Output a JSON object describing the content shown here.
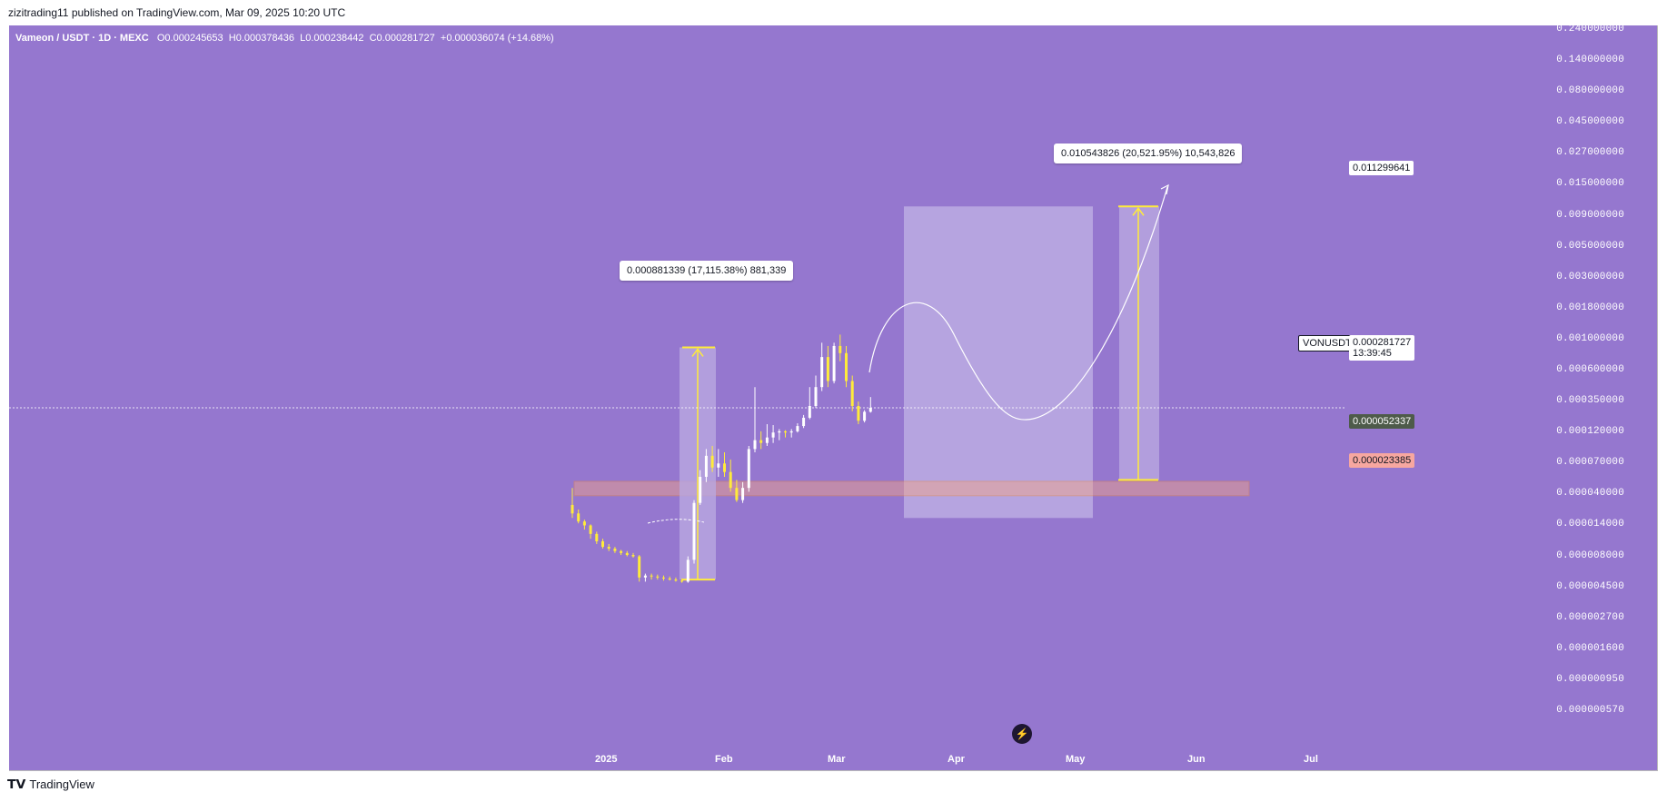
{
  "publish_line": "zizitrading11 published on TradingView.com, Mar 09, 2025 10:20 UTC",
  "symbol_line": {
    "symbol": "Vameon / USDT · 1D · MEXC",
    "open": "O0.000245653",
    "high": "H0.000378436",
    "low": "L0.000238442",
    "close": "C0.000281727",
    "change": "+0.000036074 (+14.68%)"
  },
  "price_axis": {
    "scale": "log",
    "ticks": [
      "0.240000000",
      "0.140000000",
      "0.080000000",
      "0.045000000",
      "0.027000000",
      "0.015000000",
      "0.009000000",
      "0.005000000",
      "0.003000000",
      "0.001800000",
      "0.001000000",
      "0.000600000",
      "0.000350000",
      "0.000120000",
      "0.000070000",
      "0.000040000",
      "0.000014000",
      "0.000008000",
      "0.000004500",
      "0.000002700",
      "0.000001600",
      "0.000000950",
      "0.000000570"
    ]
  },
  "time_axis": {
    "ticks": [
      "2025",
      "Feb",
      "Mar",
      "Apr",
      "May",
      "Jun",
      "Jul"
    ]
  },
  "callouts": {
    "measure_1": "0.000881339 (17,115.38%) 881,339",
    "measure_2": "0.010543826 (20,521.95%) 10,543,826"
  },
  "price_tags": {
    "target": "0.011299641",
    "symbol": "VONUSDT",
    "current": "0.000281727",
    "countdown": "13:39:45",
    "zone_top": "0.000052337",
    "zone_bottom": "0.000023385"
  },
  "colors": {
    "background": "#9577cf",
    "candle_up": "#ffffff",
    "candle_down": "#ffeb3b",
    "zone_fill": "#f4a582",
    "projection_fill": "#c2b3e6",
    "target_tag": "#ffffff",
    "zone_top_tag": "#4e5b4a",
    "zone_bottom_tag": "#f7a7a0"
  },
  "icons": {
    "replay": "lightning-icon",
    "brand": "tradingview-logo"
  },
  "footer": {
    "brand": "TradingView"
  },
  "chart_data": {
    "type": "candlestick",
    "title": "Vameon / USDT · 1D · MEXC",
    "y_scale": "log",
    "ylim": [
      5.7e-07,
      0.24
    ],
    "x_ticks": [
      "2025",
      "Feb",
      "Mar",
      "Apr",
      "May",
      "Jun",
      "Jul"
    ],
    "series": [
      {
        "values": [
          [
            2.8e-05,
            4.5e-05,
            1.8e-05,
            2.1e-05
          ],
          [
            2.1e-05,
            2.4e-05,
            1.5e-05,
            1.6e-05
          ],
          [
            1.6e-05,
            1.7e-05,
            1.3e-05,
            1.4e-05
          ],
          [
            1.4e-05,
            1.45e-05,
            1.1e-05,
            1.2e-05
          ],
          [
            1.2e-05,
            1.25e-05,
            1e-05,
            1.05e-05
          ],
          [
            1.05e-05,
            1.1e-05,
            9.2e-06,
            9.5e-06
          ],
          [
            9.5e-06,
            1e-05,
            8.8e-06,
            9.2e-06
          ],
          [
            9.2e-06,
            9.5e-06,
            8.5e-06,
            8.8e-06
          ],
          [
            8.8e-06,
            9e-06,
            8.2e-06,
            8.5e-06
          ],
          [
            8.5e-06,
            8.8e-06,
            8e-06,
            8.2e-06
          ],
          [
            8.2e-06,
            8.5e-06,
            7.8e-06,
            8e-06
          ],
          [
            8e-06,
            8.2e-06,
            5e-06,
            5.4e-06
          ],
          [
            5.4e-06,
            5.8e-06,
            5e-06,
            5.6e-06
          ],
          [
            5.6e-06,
            5.8e-06,
            5.2e-06,
            5.5e-06
          ],
          [
            5.5e-06,
            5.7e-06,
            5.2e-06,
            5.4e-06
          ],
          [
            5.4e-06,
            5.6e-06,
            5.1e-06,
            5.3e-06
          ],
          [
            5.3e-06,
            5.5e-06,
            5.1e-06,
            5.2e-06
          ],
          [
            5.2e-06,
            5.4e-06,
            5e-06,
            5.1e-06
          ],
          [
            5.1e-06,
            5.3e-06,
            4.9e-06,
            5e-06
          ],
          [
            5e-06,
            8e-06,
            4.9e-06,
            7.5e-06
          ],
          [
            7.5e-06,
            3.3e-05,
            7e-06,
            3e-05
          ],
          [
            3e-05,
            6.2e-05,
            2.8e-05,
            5.5e-05
          ],
          [
            5.5e-05,
            9e-05,
            5e-05,
            8e-05
          ],
          [
            8e-05,
            9.5e-05,
            6e-05,
            6.5e-05
          ],
          [
            6.5e-05,
            9e-05,
            5.5e-05,
            7e-05
          ],
          [
            7e-05,
            8.5e-05,
            5.5e-05,
            6e-05
          ],
          [
            6e-05,
            7.5e-05,
            4.2e-05,
            4.5e-05
          ],
          [
            4.5e-05,
            5.2e-05,
            3.1e-05,
            3.3e-05
          ],
          [
            3.3e-05,
            5e-05,
            3e-05,
            4.5e-05
          ],
          [
            4.5e-05,
            9.5e-05,
            4.2e-05,
            9e-05
          ],
          [
            9e-05,
            0.00045,
            8.5e-05,
            0.000105
          ],
          [
            0.000105,
            0.000125,
            9e-05,
            0.0001
          ],
          [
            0.0001,
            0.00016,
            9.5e-05,
            0.00011
          ],
          [
            0.00011,
            0.000155,
            0.0001,
            0.00012
          ],
          [
            0.00012,
            0.000135,
            0.000105,
            0.000125
          ],
          [
            0.000125,
            0.00013,
            0.00011,
            0.00012
          ],
          [
            0.00012,
            0.000135,
            0.00011,
            0.000125
          ],
          [
            0.000125,
            0.000165,
            0.00012,
            0.00015
          ],
          [
            0.00015,
            0.00022,
            0.00014,
            0.0002
          ],
          [
            0.0002,
            0.00045,
            0.00019,
            0.0003
          ],
          [
            0.0003,
            0.00055,
            0.00028,
            0.00045
          ],
          [
            0.00045,
            0.00095,
            0.00042,
            0.00075
          ],
          [
            0.00075,
            0.0009,
            0.00045,
            0.0005
          ],
          [
            0.0005,
            0.00095,
            0.00048,
            0.0009
          ],
          [
            0.0009,
            0.0011,
            0.0007,
            0.0008
          ],
          [
            0.0008,
            0.0009,
            0.00045,
            0.0005
          ],
          [
            0.0005,
            0.00055,
            0.00025,
            0.0003
          ],
          [
            0.0003,
            0.00035,
            0.00016,
            0.00018
          ],
          [
            0.00018,
            0.00026,
            0.00017,
            0.0002456
          ],
          [
            0.0002456,
            0.0003784,
            0.0002384,
            0.0002817
          ]
        ]
      }
    ],
    "current_price": 0.000281727,
    "support_zone": [
      2.3385e-05,
      5.2337e-05
    ],
    "target": 0.011299641
  }
}
